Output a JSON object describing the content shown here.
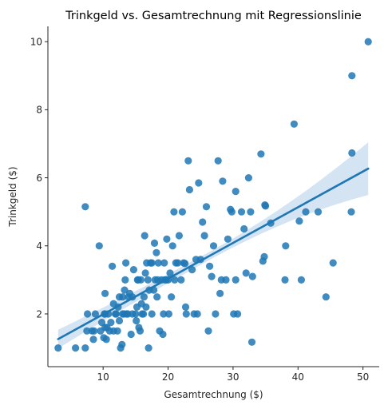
{
  "chart_data": {
    "type": "scatter",
    "title": "Trinkgeld vs. Gesamtrechnung mit Regressionslinie",
    "xlabel": "Gesamtrechnung ($)",
    "ylabel": "Trinkgeld ($)",
    "xlim": [
      1.5,
      52.5
    ],
    "ylim": [
      0.45,
      10.45
    ],
    "xticks": [
      10,
      20,
      30,
      40,
      50
    ],
    "yticks": [
      2,
      4,
      6,
      8,
      10
    ],
    "grid": false,
    "colors": {
      "points": "#1f77b4",
      "line": "#1f77b4",
      "band": "#c6dbef"
    },
    "regression": {
      "x_start": 3.07,
      "y_start": 1.26,
      "x_end": 50.81,
      "y_end": 6.27,
      "ci_low_start": 1.0,
      "ci_high_start": 1.55,
      "ci_low_end": 5.5,
      "ci_high_end": 7.05
    },
    "points": [
      [
        3.07,
        1.0
      ],
      [
        5.75,
        1.0
      ],
      [
        7.25,
        1.0
      ],
      [
        7.25,
        5.15
      ],
      [
        7.5,
        1.5
      ],
      [
        7.6,
        2.0
      ],
      [
        8.3,
        1.5
      ],
      [
        8.5,
        1.25
      ],
      [
        8.6,
        1.5
      ],
      [
        8.8,
        2.0
      ],
      [
        9.4,
        4.0
      ],
      [
        9.6,
        1.5
      ],
      [
        9.8,
        1.75
      ],
      [
        10.1,
        1.3
      ],
      [
        10.2,
        2.0
      ],
      [
        10.3,
        1.6
      ],
      [
        10.3,
        2.0
      ],
      [
        10.5,
        1.25
      ],
      [
        10.6,
        1.6
      ],
      [
        10.3,
        2.6
      ],
      [
        10.8,
        2.0
      ],
      [
        11.0,
        1.5
      ],
      [
        11.2,
        1.75
      ],
      [
        11.4,
        3.4
      ],
      [
        11.6,
        1.5
      ],
      [
        11.6,
        2.3
      ],
      [
        11.9,
        2.0
      ],
      [
        12.0,
        2.0
      ],
      [
        12.2,
        1.5
      ],
      [
        12.3,
        2.2
      ],
      [
        12.5,
        2.5
      ],
      [
        12.5,
        1.8
      ],
      [
        12.7,
        1.0
      ],
      [
        12.9,
        1.1
      ],
      [
        13.0,
        2.0
      ],
      [
        13.0,
        2.5
      ],
      [
        13.2,
        2.0
      ],
      [
        13.3,
        2.7
      ],
      [
        13.4,
        3.0
      ],
      [
        13.5,
        3.5
      ],
      [
        13.6,
        2.0
      ],
      [
        13.8,
        2.0
      ],
      [
        13.9,
        2.5
      ],
      [
        14.1,
        2.6
      ],
      [
        14.3,
        1.4
      ],
      [
        14.5,
        2.0
      ],
      [
        14.5,
        2.5
      ],
      [
        14.7,
        3.3
      ],
      [
        15.0,
        2.0
      ],
      [
        15.1,
        1.8
      ],
      [
        15.2,
        2.2
      ],
      [
        15.3,
        3.0
      ],
      [
        15.4,
        3.0
      ],
      [
        15.5,
        1.6
      ],
      [
        15.7,
        1.5
      ],
      [
        15.8,
        3.0
      ],
      [
        15.9,
        2.3
      ],
      [
        16.0,
        2.0
      ],
      [
        16.2,
        2.0
      ],
      [
        16.3,
        2.5
      ],
      [
        16.4,
        4.3
      ],
      [
        16.5,
        3.2
      ],
      [
        16.6,
        2.2
      ],
      [
        16.7,
        3.5
      ],
      [
        16.9,
        3.0
      ],
      [
        17.0,
        1.0
      ],
      [
        17.1,
        2.7
      ],
      [
        17.3,
        3.5
      ],
      [
        17.5,
        3.5
      ],
      [
        17.5,
        2.0
      ],
      [
        17.8,
        2.7
      ],
      [
        17.9,
        4.08
      ],
      [
        18.0,
        3.0
      ],
      [
        18.2,
        3.8
      ],
      [
        18.3,
        2.5
      ],
      [
        18.4,
        3.0
      ],
      [
        18.5,
        3.5
      ],
      [
        18.7,
        1.5
      ],
      [
        19.0,
        3.0
      ],
      [
        19.2,
        1.4
      ],
      [
        19.3,
        2.0
      ],
      [
        19.4,
        3.5
      ],
      [
        19.5,
        3.0
      ],
      [
        19.7,
        3.0
      ],
      [
        19.8,
        4.2
      ],
      [
        20.0,
        3.0
      ],
      [
        20.1,
        2.0
      ],
      [
        20.3,
        3.2
      ],
      [
        20.5,
        2.5
      ],
      [
        20.7,
        4.0
      ],
      [
        20.9,
        5.0
      ],
      [
        21.0,
        3.0
      ],
      [
        21.2,
        3.5
      ],
      [
        21.5,
        3.5
      ],
      [
        21.7,
        4.3
      ],
      [
        22.0,
        3.0
      ],
      [
        22.2,
        5.0
      ],
      [
        22.4,
        3.5
      ],
      [
        22.6,
        3.48
      ],
      [
        22.7,
        2.2
      ],
      [
        22.8,
        2.0
      ],
      [
        23.1,
        6.5
      ],
      [
        23.3,
        5.65
      ],
      [
        23.7,
        3.3
      ],
      [
        24.0,
        2.0
      ],
      [
        24.3,
        3.6
      ],
      [
        24.5,
        2.0
      ],
      [
        24.7,
        5.85
      ],
      [
        25.0,
        3.6
      ],
      [
        25.3,
        4.7
      ],
      [
        25.6,
        4.3
      ],
      [
        25.9,
        5.15
      ],
      [
        26.2,
        1.5
      ],
      [
        26.4,
        3.4
      ],
      [
        26.7,
        3.1
      ],
      [
        27.0,
        4.0
      ],
      [
        27.3,
        2.0
      ],
      [
        27.7,
        6.5
      ],
      [
        28.0,
        2.6
      ],
      [
        28.2,
        3.0
      ],
      [
        28.4,
        5.9
      ],
      [
        28.9,
        3.0
      ],
      [
        29.2,
        4.2
      ],
      [
        29.6,
        5.07
      ],
      [
        29.8,
        5.0
      ],
      [
        30.1,
        2.0
      ],
      [
        30.4,
        5.6
      ],
      [
        30.4,
        3.0
      ],
      [
        30.7,
        2.0
      ],
      [
        31.3,
        5.0
      ],
      [
        31.7,
        4.5
      ],
      [
        32.0,
        3.2
      ],
      [
        32.4,
        6.0
      ],
      [
        32.7,
        5.0
      ],
      [
        32.9,
        1.17
      ],
      [
        33.0,
        3.1
      ],
      [
        34.3,
        6.7
      ],
      [
        34.6,
        3.55
      ],
      [
        34.8,
        3.68
      ],
      [
        34.9,
        5.2
      ],
      [
        35.0,
        5.17
      ],
      [
        35.8,
        4.67
      ],
      [
        38.0,
        3.0
      ],
      [
        38.1,
        4.0
      ],
      [
        39.4,
        7.58
      ],
      [
        40.2,
        4.73
      ],
      [
        40.5,
        3.0
      ],
      [
        41.2,
        5.0
      ],
      [
        43.1,
        5.0
      ],
      [
        44.3,
        2.5
      ],
      [
        45.4,
        3.5
      ],
      [
        48.2,
        5.0
      ],
      [
        48.3,
        6.73
      ],
      [
        48.3,
        9.0
      ],
      [
        50.8,
        10.0
      ]
    ]
  }
}
